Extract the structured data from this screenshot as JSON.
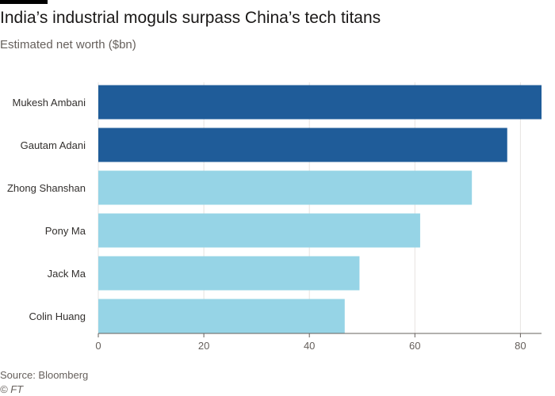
{
  "header": {
    "title": "India’s industrial moguls surpass China’s tech titans",
    "subtitle": "Estimated net worth ($bn)"
  },
  "footer": {
    "source": "Source: Bloomberg",
    "copyright": "© FT"
  },
  "chart_data": {
    "type": "bar",
    "orientation": "horizontal",
    "title": "India’s industrial moguls surpass China’s tech titans",
    "subtitle": "Estimated net worth ($bn)",
    "categories": [
      "Mukesh Ambani",
      "Gautam Adani",
      "Zhong Shanshan",
      "Pony Ma",
      "Jack Ma",
      "Colin Huang"
    ],
    "values": [
      84,
      77.5,
      70.8,
      61,
      49.5,
      46.7
    ],
    "bar_colors": [
      "#1f5c99",
      "#1f5c99",
      "#96d4e6",
      "#96d4e6",
      "#96d4e6",
      "#96d4e6"
    ],
    "xlim": [
      0,
      84
    ],
    "xticks": [
      0,
      20,
      40,
      60,
      80
    ],
    "grid": true,
    "legend": "none"
  }
}
